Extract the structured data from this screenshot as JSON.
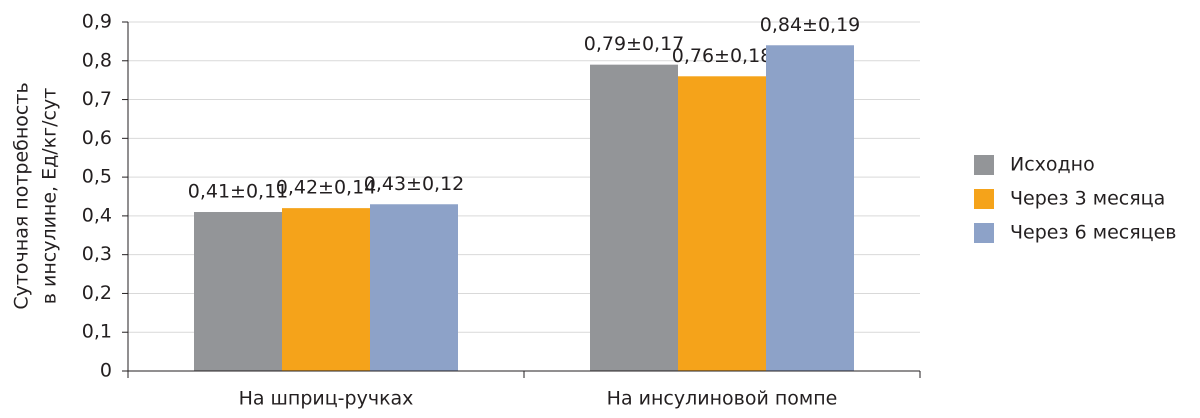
{
  "chart_data": {
    "type": "bar",
    "ylabel": [
      "Суточная потребность",
      "в инсулине, Ед/кг/сут"
    ],
    "categories": [
      "На шприц-ручках",
      "На инсулиновой помпе"
    ],
    "series": [
      {
        "name": "Исходно",
        "color": "#939598",
        "values": [
          0.41,
          0.79
        ],
        "value_labels": [
          "0,41±0,11",
          "0,79±0,17"
        ]
      },
      {
        "name": "Через 3 месяца",
        "color": "#f5a31a",
        "values": [
          0.42,
          0.76
        ],
        "value_labels": [
          "0,42±0,14",
          "0,76±0,18"
        ]
      },
      {
        "name": "Через 6 месяцев",
        "color": "#8da2c8",
        "values": [
          0.43,
          0.84
        ],
        "value_labels": [
          "0,43±0,12",
          "0,84±0,19"
        ]
      }
    ],
    "ylim": [
      0,
      0.9
    ],
    "yticks": [
      0,
      {
        "value": 0.1,
        "label": "0,1"
      },
      {
        "value": 0.2,
        "label": "0,2"
      },
      {
        "value": 0.3,
        "label": "0,3"
      },
      {
        "value": 0.4,
        "label": "0,4"
      },
      {
        "value": 0.5,
        "label": "0,5"
      },
      {
        "value": 0.6,
        "label": "0,6"
      },
      {
        "value": 0.7,
        "label": "0,7"
      },
      {
        "value": 0.8,
        "label": "0,8"
      },
      {
        "value": 0.9,
        "label": "0,9"
      }
    ],
    "grid": true,
    "legend": "right"
  }
}
